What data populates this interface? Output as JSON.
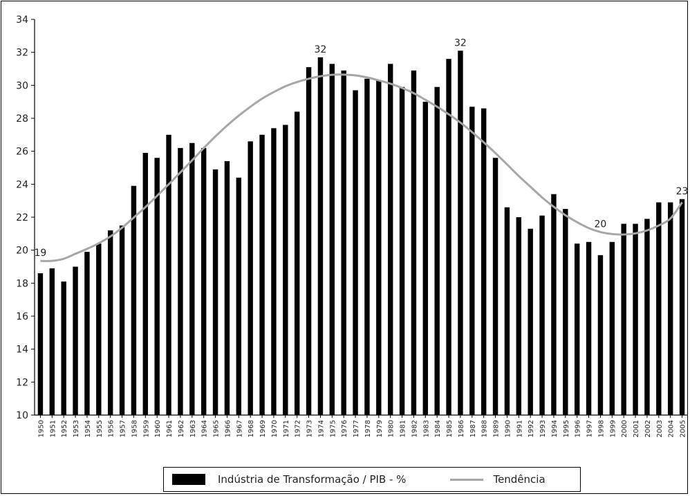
{
  "chart_data": {
    "type": "bar",
    "title": "",
    "xlabel": "",
    "ylabel": "",
    "ylim": [
      10,
      34
    ],
    "yticks": [
      10,
      12,
      14,
      16,
      18,
      20,
      22,
      24,
      26,
      28,
      30,
      32,
      34
    ],
    "grid": false,
    "legend_position": "bottom",
    "colors": {
      "bars": "#000000",
      "trend": "#a6a6a6",
      "axis": "#000000"
    },
    "categories": [
      "1950",
      "1951",
      "1952",
      "1953",
      "1954",
      "1955",
      "1956",
      "1957",
      "1958",
      "1959",
      "1960",
      "1961",
      "1962",
      "1963",
      "1964",
      "1965",
      "1966",
      "1967",
      "1968",
      "1969",
      "1970",
      "1971",
      "1972",
      "1973",
      "1974",
      "1975",
      "1976",
      "1977",
      "1978",
      "1979",
      "1980",
      "1981",
      "1982",
      "1983",
      "1984",
      "1985",
      "1986",
      "1987",
      "1988",
      "1989",
      "1990",
      "1991",
      "1992",
      "1993",
      "1994",
      "1995",
      "1996",
      "1997",
      "1998",
      "1999",
      "2000",
      "2001",
      "2002",
      "2003",
      "2004",
      "2005"
    ],
    "series": [
      {
        "name": "Indústria de Transformação / PIB - %",
        "type": "bar",
        "values": [
          18.6,
          18.9,
          18.1,
          19.0,
          19.9,
          20.4,
          21.2,
          21.5,
          23.9,
          25.9,
          25.6,
          27.0,
          26.2,
          26.5,
          26.2,
          24.9,
          25.4,
          24.4,
          26.6,
          27.0,
          27.4,
          27.6,
          28.4,
          31.1,
          31.7,
          31.3,
          30.9,
          29.7,
          30.4,
          30.3,
          31.3,
          29.9,
          30.9,
          29.0,
          29.9,
          31.6,
          32.1,
          28.7,
          28.6,
          25.6,
          22.6,
          22.0,
          21.3,
          22.1,
          23.4,
          22.5,
          20.4,
          20.5,
          19.7,
          20.5,
          21.6,
          21.6,
          21.9,
          22.9,
          22.9,
          23.1
        ]
      },
      {
        "name": "Tendência",
        "type": "line",
        "values": [
          19.35,
          19.35,
          19.48,
          19.78,
          20.08,
          20.42,
          20.83,
          21.36,
          21.98,
          22.61,
          23.3,
          24.0,
          24.72,
          25.45,
          26.19,
          26.9,
          27.56,
          28.16,
          28.7,
          29.19,
          29.59,
          29.94,
          30.2,
          30.4,
          30.55,
          30.64,
          30.65,
          30.6,
          30.48,
          30.3,
          30.1,
          29.84,
          29.52,
          29.12,
          28.7,
          28.24,
          27.74,
          27.16,
          26.54,
          25.89,
          25.2,
          24.5,
          23.85,
          23.2,
          22.63,
          22.12,
          21.7,
          21.34,
          21.1,
          20.98,
          20.95,
          21.02,
          21.2,
          21.5,
          21.92,
          22.9
        ]
      }
    ],
    "annotations": [
      {
        "category": "1950",
        "text": "19"
      },
      {
        "category": "1974",
        "text": "32"
      },
      {
        "category": "1986",
        "text": "32"
      },
      {
        "category": "1998",
        "text": "20"
      },
      {
        "category": "2005",
        "text": "23"
      }
    ]
  },
  "legend": {
    "bar_label": "Indústria de Transformação / PIB - %",
    "line_label": "Tendência"
  }
}
